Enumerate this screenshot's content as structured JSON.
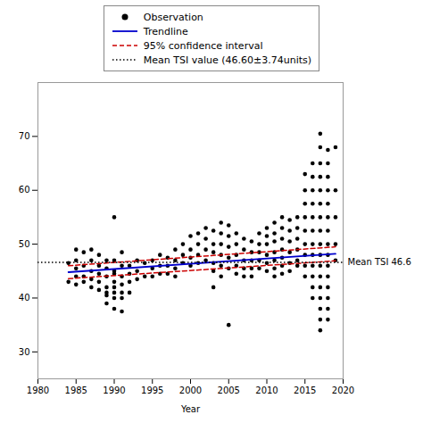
{
  "chart_data": {
    "type": "scatter",
    "xlabel": "Year",
    "xlim": [
      1980,
      2020
    ],
    "ylim": [
      25,
      80
    ],
    "xticks": [
      1980,
      1985,
      1990,
      1995,
      2000,
      2005,
      2010,
      2015,
      2020
    ],
    "yticks": [
      30,
      40,
      50,
      60,
      70
    ],
    "legend": "top",
    "series": [
      {
        "name": "Observation",
        "type": "scatter",
        "marker": "o",
        "color": "#000000",
        "x": [
          1984,
          1984,
          1985,
          1985,
          1985,
          1985,
          1985,
          1986,
          1986,
          1986,
          1986,
          1987,
          1987,
          1987,
          1987,
          1987,
          1988,
          1988,
          1988,
          1988,
          1988,
          1989,
          1989,
          1989,
          1989,
          1989,
          1989,
          1989,
          1990,
          1990,
          1990,
          1990,
          1990,
          1990,
          1990,
          1990,
          1990,
          1991,
          1991,
          1991,
          1991,
          1991,
          1991,
          1991,
          1992,
          1992,
          1992,
          1992,
          1993,
          1993,
          1993,
          1994,
          1994,
          1995,
          1995,
          1995,
          1996,
          1996,
          1996,
          1997,
          1997,
          1997,
          1998,
          1998,
          1998,
          1998,
          1999,
          1999,
          1999,
          2000,
          2000,
          2000,
          2000,
          2001,
          2001,
          2001,
          2001,
          2002,
          2002,
          2002,
          2002,
          2003,
          2003,
          2003,
          2003,
          2003,
          2003,
          2004,
          2004,
          2004,
          2004,
          2004,
          2004,
          2005,
          2005,
          2005,
          2005,
          2005,
          2005,
          2006,
          2006,
          2006,
          2006,
          2006,
          2007,
          2007,
          2007,
          2007,
          2007,
          2008,
          2008,
          2008,
          2008,
          2008,
          2009,
          2009,
          2009,
          2009,
          2009,
          2010,
          2010,
          2010,
          2010,
          2010,
          2010,
          2011,
          2011,
          2011,
          2011,
          2011,
          2011,
          2011,
          2012,
          2012,
          2012,
          2012,
          2012,
          2012,
          2012,
          2013,
          2013,
          2013,
          2013,
          2013,
          2013,
          2014,
          2014,
          2014,
          2014,
          2014,
          2014,
          2015,
          2015,
          2015,
          2015,
          2015,
          2015,
          2015,
          2015,
          2015,
          2016,
          2016,
          2016,
          2016,
          2016,
          2016,
          2016,
          2016,
          2016,
          2016,
          2016,
          2016,
          2017,
          2017,
          2017,
          2017,
          2017,
          2017,
          2017,
          2017,
          2017,
          2017,
          2017,
          2017,
          2017,
          2017,
          2017,
          2017,
          2017,
          2018,
          2018,
          2018,
          2018,
          2018,
          2018,
          2018,
          2018,
          2018,
          2018,
          2018,
          2018,
          2018,
          2018,
          2018,
          2019,
          2019,
          2019,
          2019,
          2019
        ],
        "values": [
          46.5,
          43.0,
          44.0,
          45.5,
          47.0,
          42.5,
          49.0,
          46.0,
          44.0,
          48.5,
          43.0,
          45.0,
          43.5,
          47.0,
          49.0,
          42.0,
          46.0,
          44.5,
          48.0,
          43.0,
          41.5,
          45.5,
          44.0,
          47.0,
          42.0,
          40.5,
          39.0,
          41.0,
          55.0,
          47.0,
          44.5,
          43.0,
          42.0,
          45.0,
          41.0,
          40.0,
          38.0,
          48.5,
          46.0,
          44.0,
          42.5,
          41.0,
          40.0,
          37.5,
          46.0,
          44.5,
          43.0,
          41.0,
          47.0,
          45.0,
          43.5,
          46.5,
          44.0,
          47.0,
          45.5,
          44.0,
          48.0,
          46.0,
          44.5,
          47.5,
          46.0,
          44.5,
          49.0,
          47.0,
          45.5,
          44.0,
          50.0,
          48.0,
          46.5,
          51.5,
          49.0,
          47.5,
          46.0,
          52.0,
          50.0,
          48.0,
          46.5,
          53.0,
          51.0,
          49.0,
          47.0,
          52.5,
          50.0,
          48.5,
          46.5,
          45.0,
          42.0,
          54.0,
          52.0,
          50.0,
          48.0,
          46.0,
          44.0,
          53.5,
          51.5,
          49.5,
          47.5,
          45.5,
          35.0,
          52.0,
          50.0,
          48.0,
          46.0,
          44.5,
          51.0,
          49.0,
          47.0,
          45.5,
          44.0,
          50.5,
          48.5,
          47.0,
          45.5,
          44.0,
          52.0,
          50.0,
          48.5,
          47.0,
          45.5,
          53.0,
          51.5,
          50.0,
          48.0,
          46.5,
          45.0,
          54.0,
          52.0,
          50.5,
          48.5,
          47.0,
          45.5,
          44.0,
          55.0,
          53.0,
          51.0,
          49.0,
          47.5,
          46.0,
          44.5,
          54.5,
          52.5,
          50.5,
          48.5,
          46.5,
          45.0,
          55.0,
          53.0,
          51.0,
          49.0,
          47.0,
          46.0,
          63.0,
          60.0,
          57.5,
          55.0,
          52.5,
          50.0,
          48.0,
          46.0,
          44.0,
          65.0,
          62.5,
          60.0,
          57.5,
          55.0,
          52.5,
          50.0,
          48.0,
          46.0,
          44.0,
          42.0,
          40.0,
          70.5,
          68.0,
          65.0,
          62.5,
          60.0,
          57.5,
          55.0,
          52.5,
          50.0,
          48.0,
          46.0,
          44.0,
          42.0,
          40.0,
          38.0,
          36.0,
          34.0,
          67.5,
          65.0,
          62.5,
          60.0,
          57.5,
          55.0,
          52.5,
          50.0,
          48.0,
          46.0,
          44.0,
          42.0,
          40.0,
          38.0,
          36.0,
          68.0,
          60.0,
          55.0,
          50.0,
          47.0
        ]
      },
      {
        "name": "Trendline",
        "type": "line",
        "line_style": "solid",
        "color": "#0000cc",
        "x": [
          1984,
          2019
        ],
        "values": [
          44.8,
          48.2
        ]
      },
      {
        "name": "95% confidence interval",
        "type": "band_lines",
        "line_style": "dashed",
        "color": "#cc0000",
        "x": [
          1984,
          2019
        ],
        "upper": [
          46.0,
          49.5
        ],
        "lower": [
          43.6,
          46.9
        ]
      },
      {
        "name": "Mean TSI value (46.60±3.74units)",
        "type": "hline",
        "line_style": "dotted",
        "color": "#000000",
        "value": 46.6
      }
    ],
    "annotations": [
      {
        "text": "Mean TSI 46.6",
        "y": 46.6
      }
    ]
  }
}
